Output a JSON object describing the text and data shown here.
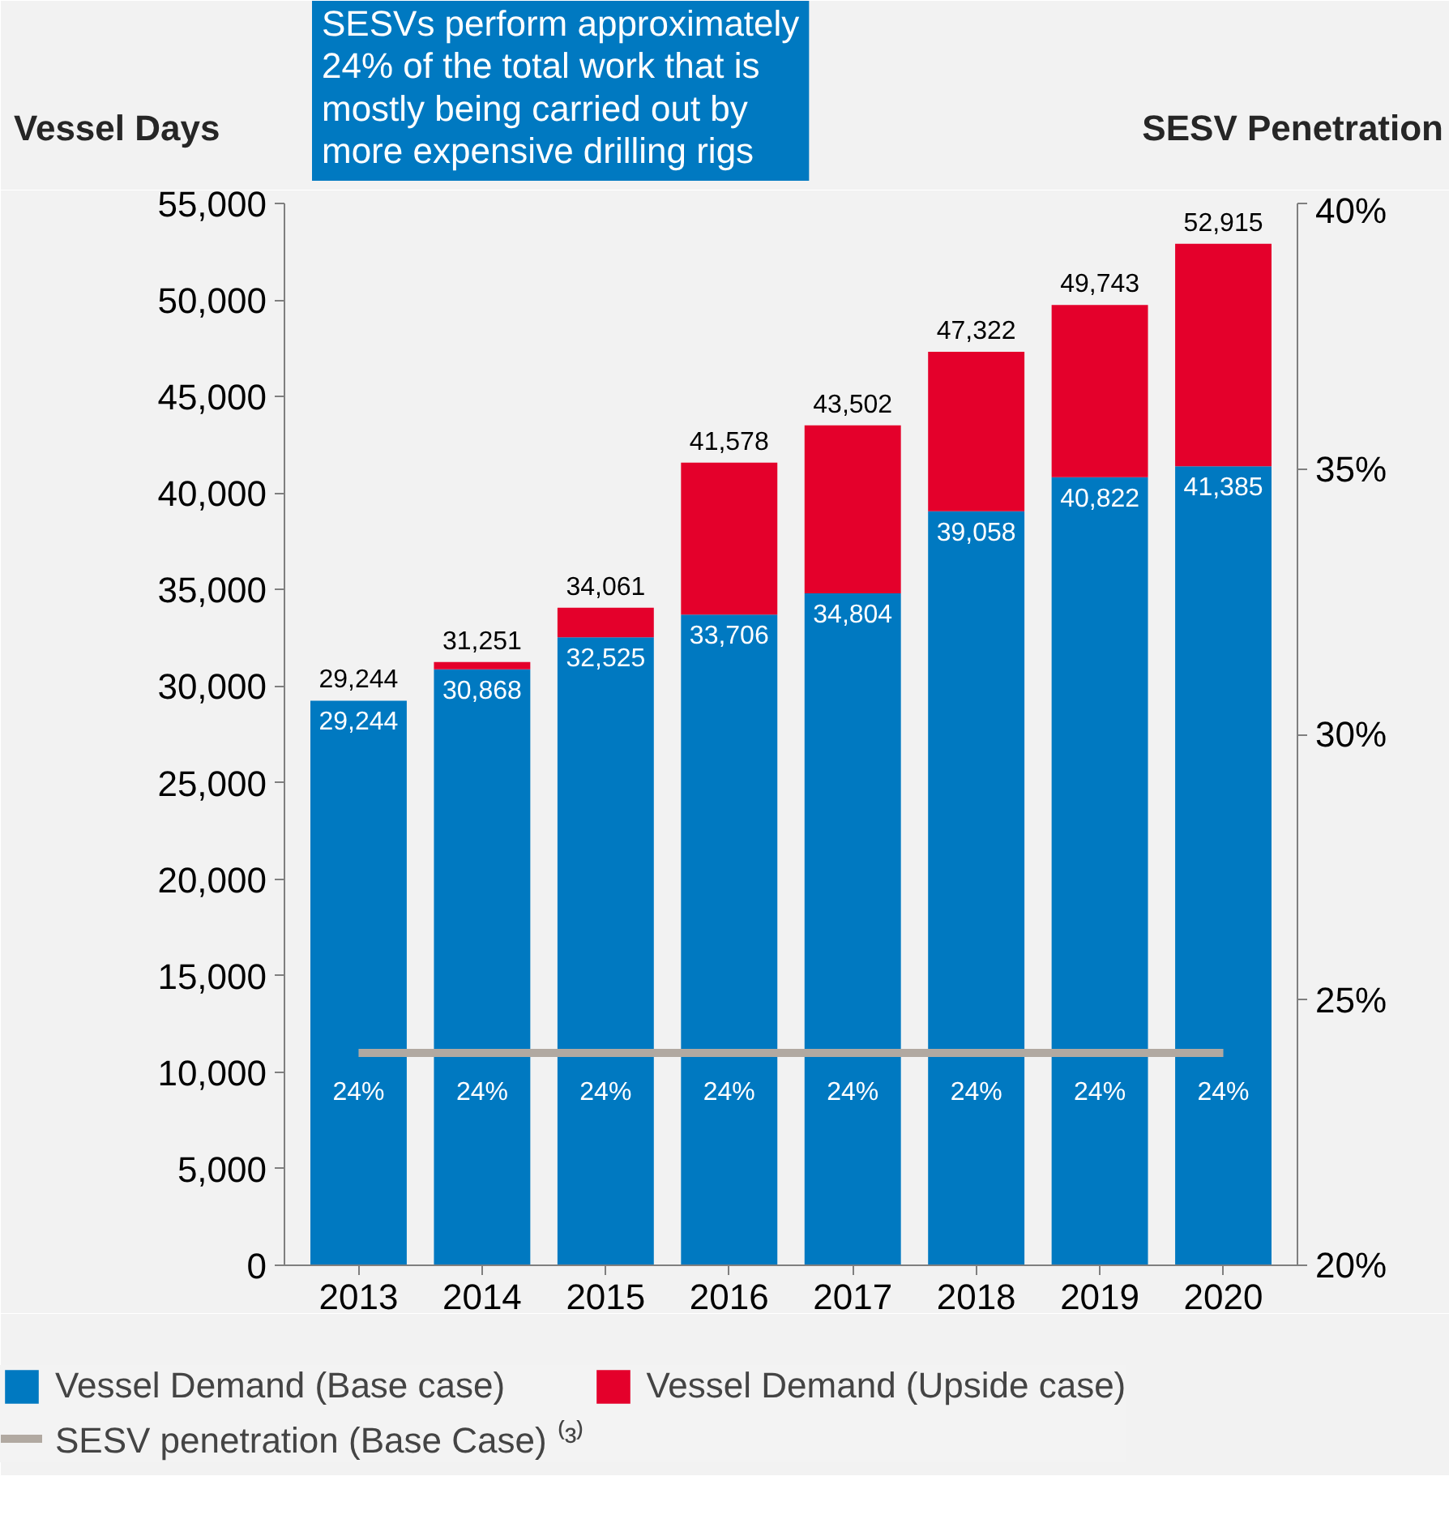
{
  "chart_data": {
    "type": "bar",
    "stacked": true,
    "categories": [
      "2013",
      "2014",
      "2015",
      "2016",
      "2017",
      "2018",
      "2019",
      "2020"
    ],
    "series": [
      {
        "name": "Vessel Demand (Base case)",
        "color": "#0079c1",
        "values": [
          29244,
          30868,
          32525,
          33706,
          34804,
          39058,
          40822,
          41385
        ],
        "value_labels": [
          "29,244",
          "30,868",
          "32,525",
          "33,706",
          "34,804",
          "39,058",
          "40,822",
          "41,385"
        ]
      },
      {
        "name": "Vessel Demand (Upside case)",
        "color": "#e4002b",
        "values": [
          0,
          383,
          1536,
          7872,
          8698,
          8264,
          8921,
          11530
        ]
      },
      {
        "name": "SESV penetration (Base Case) ⁽³⁾",
        "type": "line",
        "axis": "y2",
        "color": "#b1a9a1",
        "values": [
          24,
          24,
          24,
          24,
          24,
          24,
          24,
          24
        ],
        "value_labels": [
          "24%",
          "24%",
          "24%",
          "24%",
          "24%",
          "24%",
          "24%",
          "24%"
        ]
      }
    ],
    "totals": [
      "29,244",
      "31,251",
      "34,061",
      "41,578",
      "43,502",
      "47,322",
      "49,743",
      "52,915"
    ],
    "ylabel": "Vessel Days",
    "y2label": "SESV Penetration",
    "ylim": [
      0,
      55000
    ],
    "yticks": [
      {
        "value": 0,
        "label": "0"
      },
      {
        "value": 5000,
        "label": "5,000"
      },
      {
        "value": 10000,
        "label": "10,000"
      },
      {
        "value": 15000,
        "label": "15,000"
      },
      {
        "value": 20000,
        "label": "20,000"
      },
      {
        "value": 25000,
        "label": "25,000"
      },
      {
        "value": 30000,
        "label": "30,000"
      },
      {
        "value": 35000,
        "label": "35,000"
      },
      {
        "value": 40000,
        "label": "40,000"
      },
      {
        "value": 45000,
        "label": "45,000"
      },
      {
        "value": 50000,
        "label": "50,000"
      },
      {
        "value": 55000,
        "label": "55,000"
      }
    ],
    "y2lim": [
      20,
      40
    ],
    "y2ticks": [
      {
        "value": 20,
        "label": "20%"
      },
      {
        "value": 25,
        "label": "25%"
      },
      {
        "value": 30,
        "label": "30%"
      },
      {
        "value": 35,
        "label": "35%"
      },
      {
        "value": 40,
        "label": "40%"
      }
    ],
    "annotations": [
      "SESVs perform approximately\n24% of the total work that is\nmostly being carried out by\nmore expensive drilling rigs"
    ],
    "legend": "bottom"
  }
}
